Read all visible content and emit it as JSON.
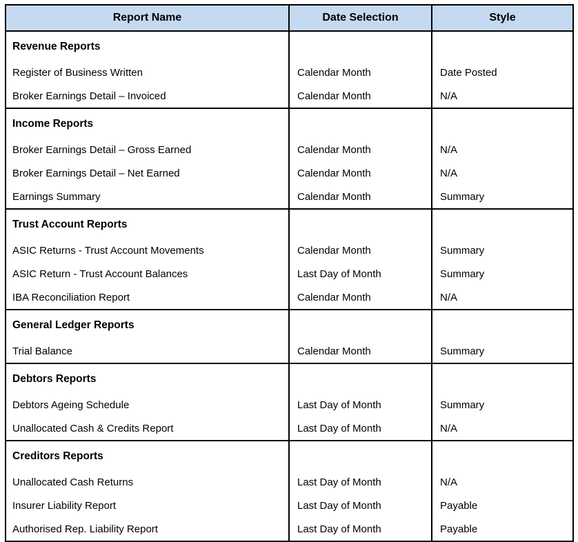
{
  "colors": {
    "header_bg": "#C5D9F1",
    "border": "#000000",
    "text": "#000000",
    "page_bg": "#FFFFFF"
  },
  "table": {
    "columns": [
      "Report Name",
      "Date Selection",
      "Style"
    ],
    "sections": [
      {
        "title": "Revenue Reports",
        "rows": [
          {
            "name": "Register of Business Written",
            "date": "Calendar Month",
            "style": "Date Posted"
          },
          {
            "name": "Broker Earnings Detail – Invoiced",
            "date": "Calendar Month",
            "style": "N/A"
          }
        ]
      },
      {
        "title": "Income Reports",
        "rows": [
          {
            "name": "Broker Earnings Detail – Gross Earned",
            "date": "Calendar Month",
            "style": "N/A"
          },
          {
            "name": "Broker Earnings Detail – Net Earned",
            "date": "Calendar Month",
            "style": "N/A"
          },
          {
            "name": "Earnings Summary",
            "date": "Calendar Month",
            "style": "Summary"
          }
        ]
      },
      {
        "title": "Trust Account Reports",
        "rows": [
          {
            "name": "ASIC Returns - Trust Account Movements",
            "date": "Calendar Month",
            "style": "Summary"
          },
          {
            "name": "ASIC Return - Trust Account Balances",
            "date": "Last Day of Month",
            "style": "Summary"
          },
          {
            "name": "IBA Reconciliation Report",
            "date": "Calendar Month",
            "style": "N/A"
          }
        ]
      },
      {
        "title": "General Ledger Reports",
        "rows": [
          {
            "name": "Trial Balance",
            "date": "Calendar Month",
            "style": "Summary"
          }
        ]
      },
      {
        "title": "Debtors Reports",
        "rows": [
          {
            "name": "Debtors Ageing Schedule",
            "date": "Last Day of Month",
            "style": "Summary"
          },
          {
            "name": "Unallocated Cash & Credits Report",
            "date": "Last Day of Month",
            "style": "N/A"
          }
        ]
      },
      {
        "title": "Creditors Reports",
        "rows": [
          {
            "name": "Unallocated Cash Returns",
            "date": "Last Day of Month",
            "style": "N/A"
          },
          {
            "name": "Insurer Liability Report",
            "date": "Last Day of Month",
            "style": "Payable"
          },
          {
            "name": "Authorised Rep. Liability Report",
            "date": "Last Day of Month",
            "style": "Payable"
          }
        ]
      }
    ]
  }
}
